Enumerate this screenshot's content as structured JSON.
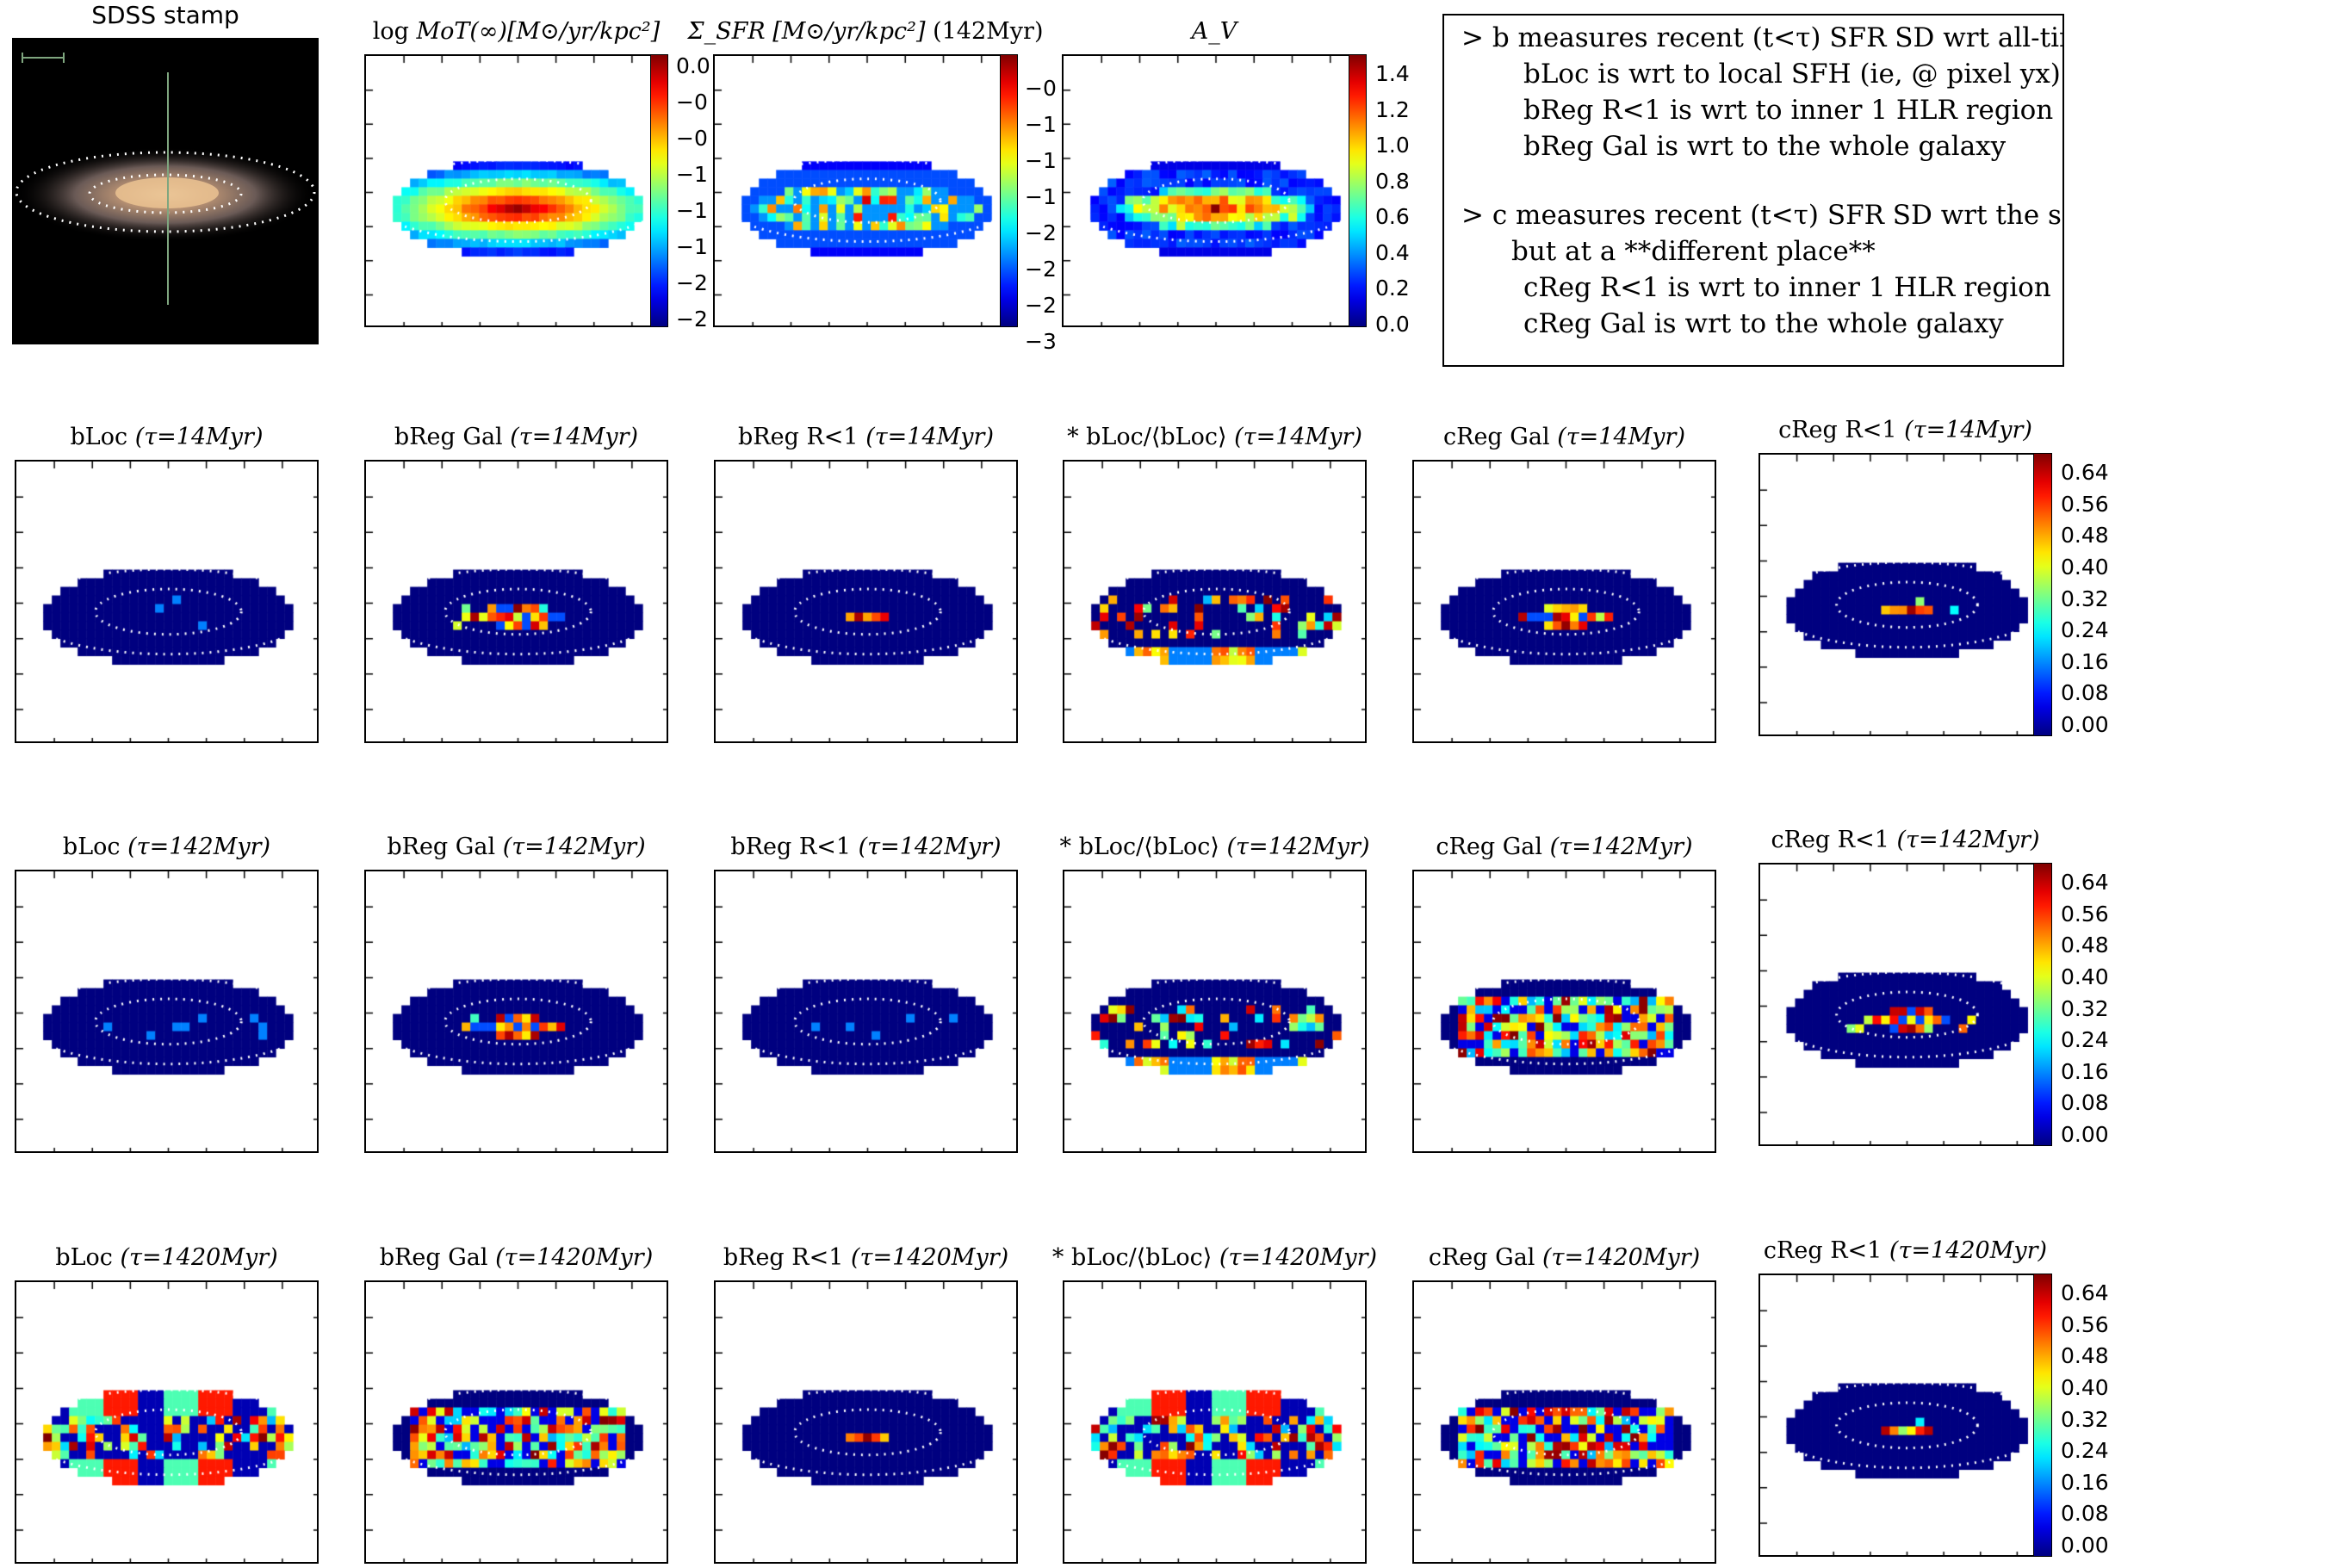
{
  "colors": {
    "colormap": "jet",
    "background": "#00007f"
  },
  "top_row": {
    "sdss": {
      "title": "SDSS stamp"
    },
    "mot": {
      "title_prefix": "log ",
      "title_math": "MoT(∞)[M⊙/yr/kpc²]",
      "colorbar_labels": [
        "0.0",
        "−0",
        "−0",
        "−1",
        "−1",
        "−1",
        "−2",
        "−2"
      ]
    },
    "sfr": {
      "title_math": "Σ_SFR [M⊙/yr/kpc²]",
      "title_suffix": " (142Myr)",
      "colorbar_labels": [
        "−0",
        "−1",
        "−1",
        "−1",
        "−2",
        "−2",
        "−2",
        "−3"
      ]
    },
    "av": {
      "title_math": "A_V",
      "colorbar_labels": [
        "1.4",
        "1.2",
        "1.0",
        "0.8",
        "0.6",
        "0.4",
        "0.2",
        "0.0"
      ]
    }
  },
  "notes": {
    "lines": [
      "> b measures recent (t<τ) SFR SD wrt all-times SFR SD",
      "bLoc is wrt to local SFH (ie, @ pixel yx)",
      "bReg R<1 is wrt to inner 1 HLR region",
      "bReg Gal is wrt to the whole galaxy",
      "> c measures recent (t<τ) SFR SD wrt the same recent SFR SD",
      "but at a **different place**",
      "cReg R<1 is wrt to inner 1 HLR region",
      "cReg Gal is wrt to the whole galaxy"
    ]
  },
  "grid": {
    "column_labels": [
      "bLoc",
      "bReg Gal",
      "bReg R<1",
      "* bLoc/⟨bLoc⟩",
      "cReg Gal",
      "cReg R<1"
    ],
    "rows": [
      {
        "tau": "(τ=14Myr)"
      },
      {
        "tau": "(τ=142Myr)"
      },
      {
        "tau": "(τ=1420Myr)"
      }
    ],
    "colorbar_labels": [
      "0.64",
      "0.56",
      "0.48",
      "0.40",
      "0.32",
      "0.24",
      "0.16",
      "0.08",
      "0.00"
    ]
  },
  "chart_data": {
    "type": "heatmap",
    "panels": [
      {
        "name": "SDSS stamp",
        "kind": "image"
      },
      {
        "name": "log MoT(∞)",
        "colorbar_range": [
          -2.1,
          0.15
        ]
      },
      {
        "name": "Σ_SFR (142Myr)",
        "colorbar_range": [
          -3.4,
          -0.3
        ]
      },
      {
        "name": "A_V",
        "colorbar_range": [
          0.0,
          1.55
        ]
      },
      {
        "name": "bLoc/bReg/cReg maps (τ=14, 142, 1420 Myr)",
        "colorbar_range": [
          0.0,
          0.69
        ]
      }
    ]
  }
}
